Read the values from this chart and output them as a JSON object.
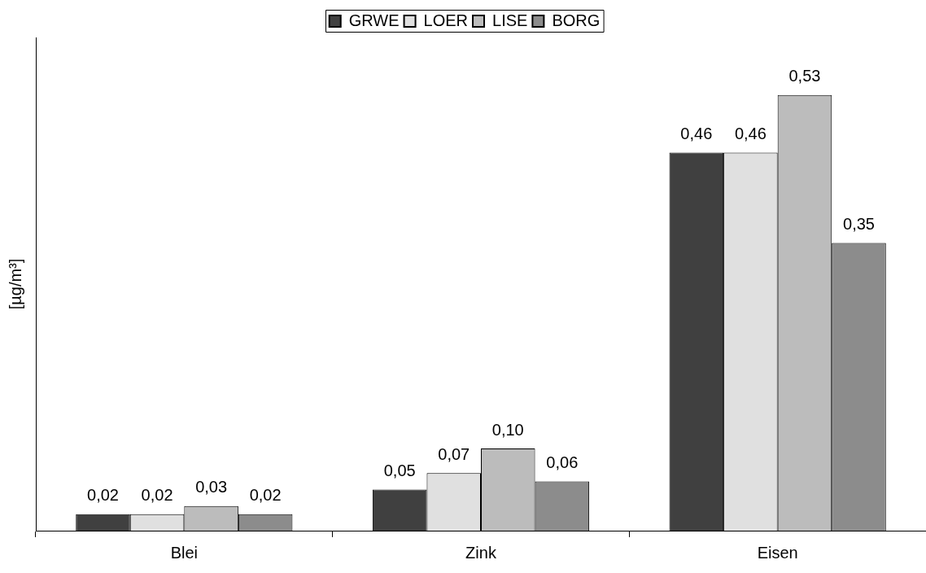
{
  "chart_data": {
    "type": "bar",
    "ylabel": "[µg/m³]",
    "categories": [
      "Blei",
      "Zink",
      "Eisen"
    ],
    "series": [
      {
        "name": "GRWE",
        "color": "#404040",
        "values": [
          0.02,
          0.05,
          0.46
        ],
        "value_labels": [
          "0,02",
          "0,05",
          "0,46"
        ]
      },
      {
        "name": "LOER",
        "color": "#e0e0e0",
        "values": [
          0.02,
          0.07,
          0.46
        ],
        "value_labels": [
          "0,02",
          "0,07",
          "0,46"
        ]
      },
      {
        "name": "LISE",
        "color": "#bcbcbc",
        "values": [
          0.03,
          0.1,
          0.53
        ],
        "value_labels": [
          "0,03",
          "0,10",
          "0,53"
        ]
      },
      {
        "name": "BORG",
        "color": "#8c8c8c",
        "values": [
          0.02,
          0.06,
          0.35
        ],
        "value_labels": [
          "0,02",
          "0,06",
          "0,35"
        ]
      }
    ],
    "tick_labels": "x",
    "grid": false,
    "legend": "top"
  }
}
